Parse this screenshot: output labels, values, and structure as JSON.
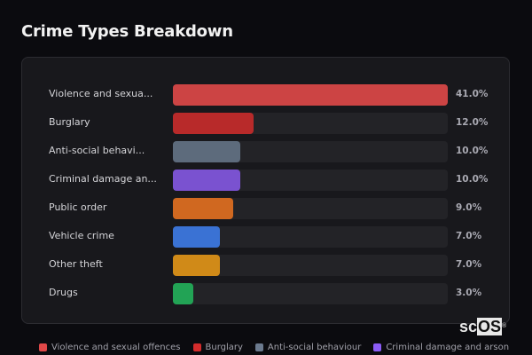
{
  "title": "Crime Types Breakdown",
  "chart_data": {
    "type": "bar",
    "orientation": "horizontal",
    "title": "Crime Types Breakdown",
    "categories": [
      "Violence and sexual offences",
      "Burglary",
      "Anti-social behaviour",
      "Criminal damage and arson",
      "Public order",
      "Vehicle crime",
      "Other theft",
      "Drugs"
    ],
    "display_labels": [
      "Violence and sexua...",
      "Burglary",
      "Anti-social behavi...",
      "Criminal damage an...",
      "Public order",
      "Vehicle crime",
      "Other theft",
      "Drugs"
    ],
    "values": [
      41.0,
      12.0,
      10.0,
      10.0,
      9.0,
      7.0,
      7.0,
      3.0
    ],
    "value_labels": [
      "41.0%",
      "12.0%",
      "10.0%",
      "10.0%",
      "9.0%",
      "7.0%",
      "7.0%",
      "3.0%"
    ],
    "colors": [
      "#cc4444",
      "#b82a2a",
      "#5d6b7c",
      "#7a52d0",
      "#d06820",
      "#3a72d4",
      "#d08a18",
      "#22a355"
    ],
    "xlim": [
      0,
      41
    ],
    "grid": false,
    "legend_position": "bottom",
    "legend": [
      "Violence and sexual offences",
      "Burglary",
      "Anti-social behaviour",
      "Criminal damage and arson"
    ],
    "legend_colors": [
      "#e04848",
      "#d42c2c",
      "#6b7a8e",
      "#8b5cf6"
    ]
  },
  "rows": [
    {
      "label": "Violence and sexua...",
      "value": "41.0%",
      "pct": 100,
      "color": "#cc4444"
    },
    {
      "label": "Burglary",
      "value": "12.0%",
      "pct": 29.3,
      "color": "#b82a2a"
    },
    {
      "label": "Anti-social behavi...",
      "value": "10.0%",
      "pct": 24.4,
      "color": "#5d6b7c"
    },
    {
      "label": "Criminal damage an...",
      "value": "10.0%",
      "pct": 24.4,
      "color": "#7a52d0"
    },
    {
      "label": "Public order",
      "value": "9.0%",
      "pct": 22.0,
      "color": "#d06820"
    },
    {
      "label": "Vehicle crime",
      "value": "7.0%",
      "pct": 17.1,
      "color": "#3a72d4"
    },
    {
      "label": "Other theft",
      "value": "7.0%",
      "pct": 17.1,
      "color": "#d08a18"
    },
    {
      "label": "Drugs",
      "value": "3.0%",
      "pct": 7.3,
      "color": "#22a355"
    }
  ],
  "legend": [
    {
      "label": "Violence and sexual offences",
      "color": "#e04848"
    },
    {
      "label": "Burglary",
      "color": "#d42c2c"
    },
    {
      "label": "Anti-social behaviour",
      "color": "#6b7a8e"
    },
    {
      "label": "Criminal damage and arson",
      "color": "#8b5cf6"
    }
  ],
  "watermark": {
    "prefix": "sc",
    "boxed": "OS",
    "mark": "®"
  }
}
